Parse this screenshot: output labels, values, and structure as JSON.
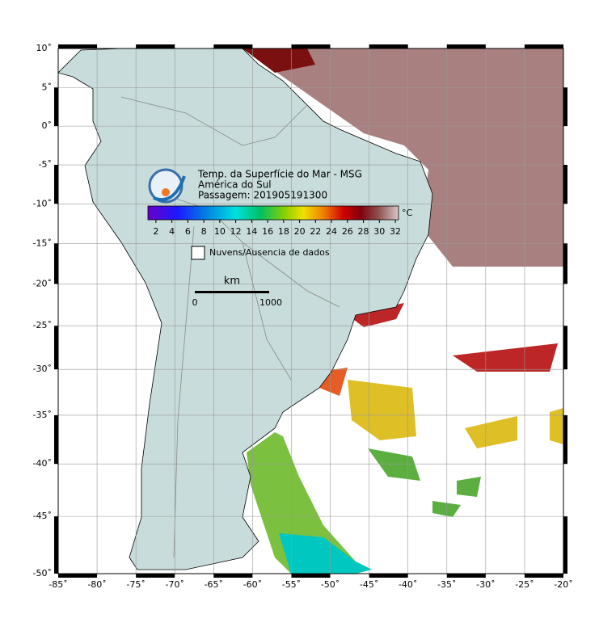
{
  "map": {
    "title_lines": [
      "Temp. da Superfície do Mar - MSG",
      "América do Sul",
      "Passagem: 201905191300"
    ],
    "lon_ticks": [
      {
        "value": -85,
        "label": "-85˚"
      },
      {
        "value": -80,
        "label": "-80˚"
      },
      {
        "value": -75,
        "label": "-75˚"
      },
      {
        "value": -70,
        "label": "-70˚"
      },
      {
        "value": -65,
        "label": "-65˚"
      },
      {
        "value": -60,
        "label": "-60˚"
      },
      {
        "value": -55,
        "label": "-55˚"
      },
      {
        "value": -50,
        "label": "-50˚"
      },
      {
        "value": -45,
        "label": "-45˚"
      },
      {
        "value": -40,
        "label": "-40˚"
      },
      {
        "value": -35,
        "label": "-35˚"
      },
      {
        "value": -30,
        "label": "-30˚"
      },
      {
        "value": -25,
        "label": "-25˚"
      },
      {
        "value": -20,
        "label": "-20˚"
      }
    ],
    "lat_ticks": [
      {
        "value": 10,
        "label": "10˚"
      },
      {
        "value": 5,
        "label": "5˚"
      },
      {
        "value": 0,
        "label": "0˚"
      },
      {
        "value": -5,
        "label": "-5˚"
      },
      {
        "value": -10,
        "label": "-10˚"
      },
      {
        "value": -15,
        "label": "-15˚"
      },
      {
        "value": -20,
        "label": "-20˚"
      },
      {
        "value": -25,
        "label": "-25˚"
      },
      {
        "value": -30,
        "label": "-30˚"
      },
      {
        "value": -35,
        "label": "-35˚"
      },
      {
        "value": -40,
        "label": "-40˚"
      },
      {
        "value": -45,
        "label": "-45˚"
      },
      {
        "value": -50,
        "label": "-50˚"
      }
    ],
    "colorbar": {
      "unit": "°C",
      "lim": [
        1,
        32.4
      ],
      "ticks": [
        2,
        4,
        6,
        8,
        10,
        12,
        14,
        16,
        18,
        20,
        22,
        24,
        26,
        28,
        30,
        32
      ]
    },
    "legend": "Nuvens/Ausencia de dados",
    "scale_bar": {
      "unit": "km",
      "labels": [
        "0",
        "1000"
      ]
    }
  }
}
